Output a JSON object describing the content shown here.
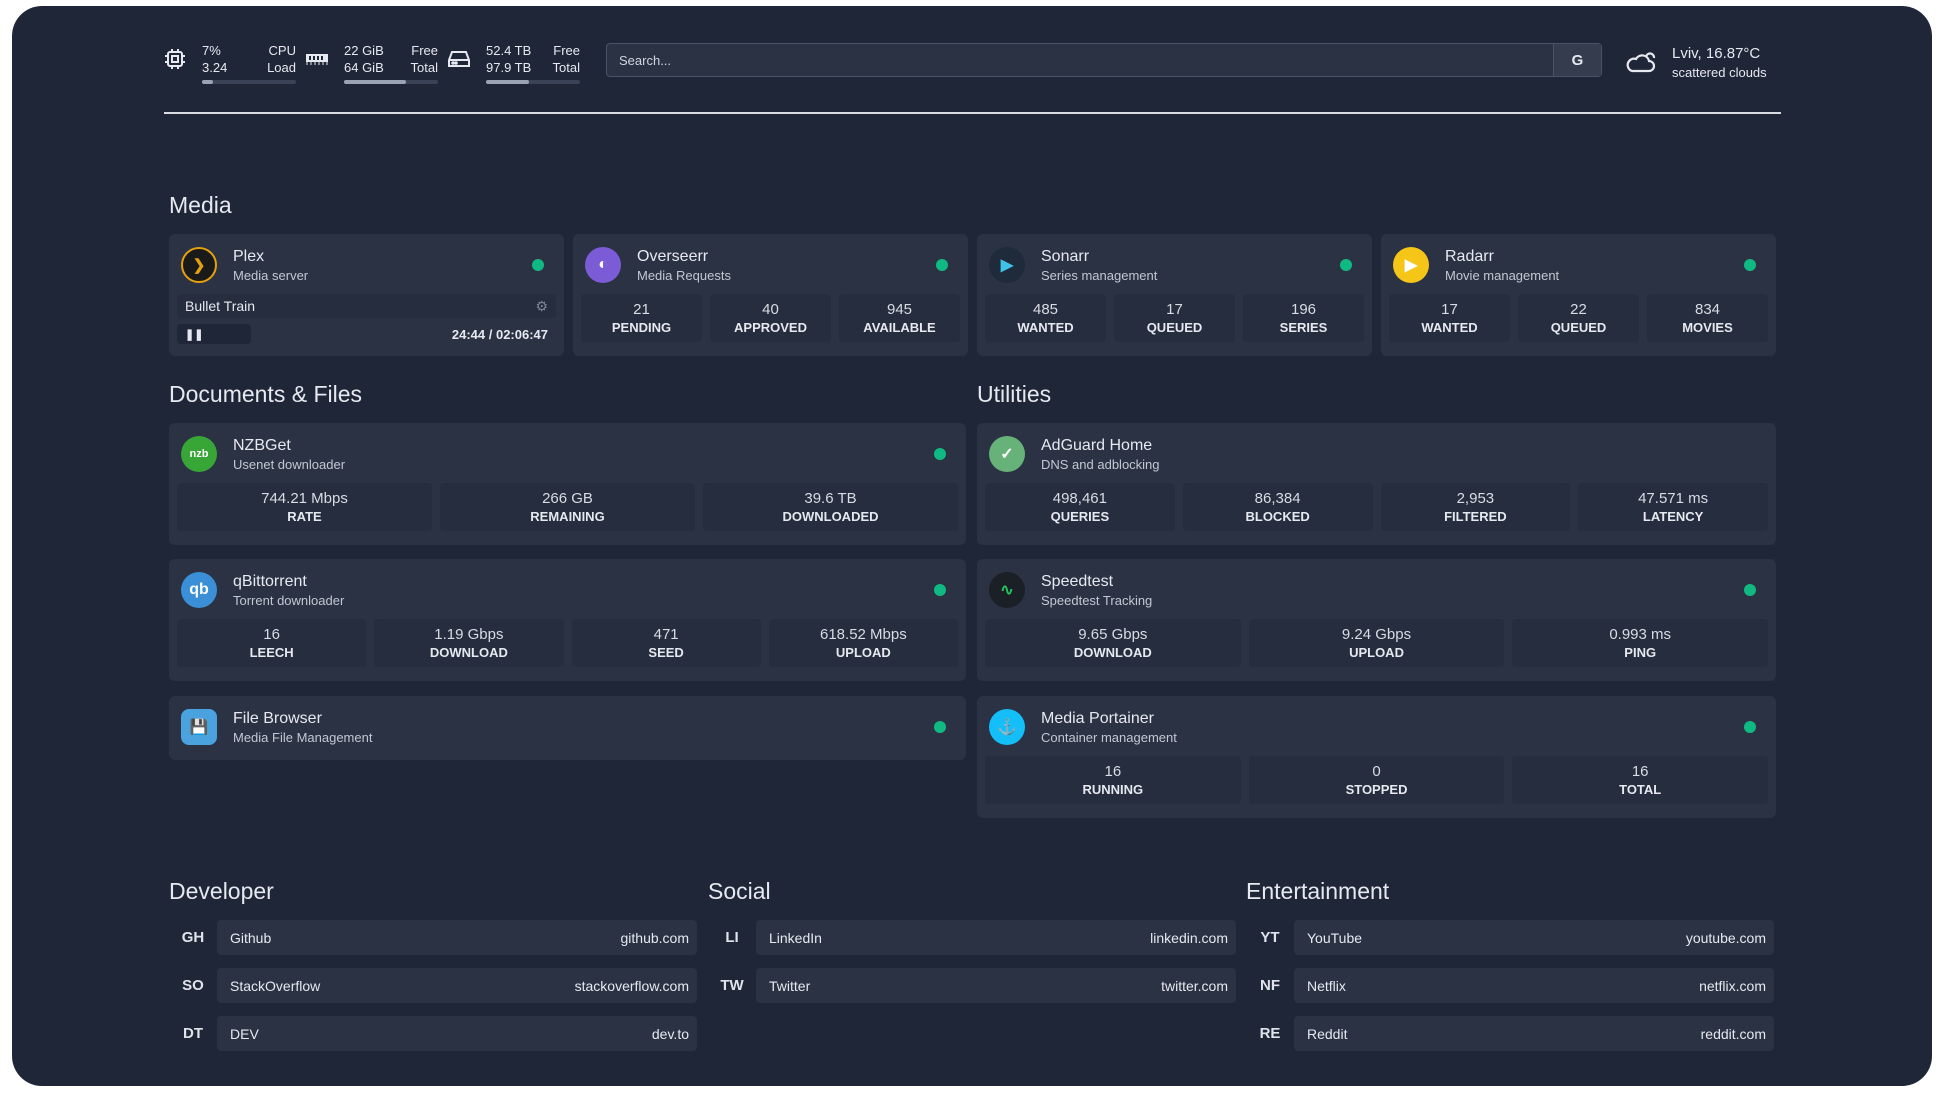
{
  "resources": {
    "cpu": {
      "icon": "cpu-icon",
      "value1": "7%",
      "value2": "3.24",
      "label1": "CPU",
      "label2": "Load",
      "usage": 0.07
    },
    "memory": {
      "icon": "memory-icon",
      "value1": "22 GiB",
      "value2": "64 GiB",
      "label1": "Free",
      "label2": "Total",
      "usage": 0.66
    },
    "disk": {
      "icon": "disk-icon",
      "value1": "52.4 TB",
      "value2": "97.9 TB",
      "label1": "Free",
      "label2": "Total",
      "usage": 0.46
    }
  },
  "search": {
    "placeholder": "Search...",
    "provider": "G"
  },
  "weather": {
    "icon": "cloud-icon",
    "location": "Lviv, 16.87°C",
    "condition": "scattered clouds"
  },
  "colors": {
    "status_online": "#10b981",
    "background": "#1f2638",
    "card": "#2a3244"
  },
  "sections": {
    "media": "Media",
    "documents": "Documents & Files",
    "utilities": "Utilities",
    "developer": "Developer",
    "social": "Social",
    "entertainment": "Entertainment"
  },
  "plex": {
    "name": "Plex",
    "desc": "Media server",
    "title": "Bullet Train",
    "time": "24:44 / 02:06:47"
  },
  "overseerr": {
    "name": "Overseerr",
    "desc": "Media Requests",
    "stats": [
      {
        "v": "21",
        "l": "PENDING"
      },
      {
        "v": "40",
        "l": "APPROVED"
      },
      {
        "v": "945",
        "l": "AVAILABLE"
      }
    ]
  },
  "sonarr": {
    "name": "Sonarr",
    "desc": "Series management",
    "stats": [
      {
        "v": "485",
        "l": "WANTED"
      },
      {
        "v": "17",
        "l": "QUEUED"
      },
      {
        "v": "196",
        "l": "SERIES"
      }
    ]
  },
  "radarr": {
    "name": "Radarr",
    "desc": "Movie management",
    "stats": [
      {
        "v": "17",
        "l": "WANTED"
      },
      {
        "v": "22",
        "l": "QUEUED"
      },
      {
        "v": "834",
        "l": "MOVIES"
      }
    ]
  },
  "nzbget": {
    "name": "NZBGet",
    "desc": "Usenet downloader",
    "logo": "nzbget",
    "stats": [
      {
        "v": "744.21 Mbps",
        "l": "RATE"
      },
      {
        "v": "266 GB",
        "l": "REMAINING"
      },
      {
        "v": "39.6 TB",
        "l": "DOWNLOADED"
      }
    ]
  },
  "qbittorrent": {
    "name": "qBittorrent",
    "desc": "Torrent downloader",
    "logo": "qb",
    "stats": [
      {
        "v": "16",
        "l": "LEECH"
      },
      {
        "v": "1.19 Gbps",
        "l": "DOWNLOAD"
      },
      {
        "v": "471",
        "l": "SEED"
      },
      {
        "v": "618.52 Mbps",
        "l": "UPLOAD"
      }
    ]
  },
  "filebrowser": {
    "name": "File Browser",
    "desc": "Media File Management"
  },
  "adguard": {
    "name": "AdGuard Home",
    "desc": "DNS and adblocking",
    "stats": [
      {
        "v": "498,461",
        "l": "QUERIES"
      },
      {
        "v": "86,384",
        "l": "BLOCKED"
      },
      {
        "v": "2,953",
        "l": "FILTERED"
      },
      {
        "v": "47.571 ms",
        "l": "LATENCY"
      }
    ]
  },
  "speedtest": {
    "name": "Speedtest",
    "desc": "Speedtest Tracking",
    "stats": [
      {
        "v": "9.65 Gbps",
        "l": "DOWNLOAD"
      },
      {
        "v": "9.24 Gbps",
        "l": "UPLOAD"
      },
      {
        "v": "0.993 ms",
        "l": "PING"
      }
    ]
  },
  "portainer": {
    "name": "Media Portainer",
    "desc": "Container management",
    "stats": [
      {
        "v": "16",
        "l": "RUNNING"
      },
      {
        "v": "0",
        "l": "STOPPED"
      },
      {
        "v": "16",
        "l": "TOTAL"
      }
    ]
  },
  "bookmarks": {
    "developer": [
      {
        "abbr": "GH",
        "name": "Github",
        "url": "github.com"
      },
      {
        "abbr": "SO",
        "name": "StackOverflow",
        "url": "stackoverflow.com"
      },
      {
        "abbr": "DT",
        "name": "DEV",
        "url": "dev.to"
      }
    ],
    "social": [
      {
        "abbr": "LI",
        "name": "LinkedIn",
        "url": "linkedin.com"
      },
      {
        "abbr": "TW",
        "name": "Twitter",
        "url": "twitter.com"
      }
    ],
    "entertainment": [
      {
        "abbr": "YT",
        "name": "YouTube",
        "url": "youtube.com"
      },
      {
        "abbr": "NF",
        "name": "Netflix",
        "url": "netflix.com"
      },
      {
        "abbr": "RE",
        "name": "Reddit",
        "url": "reddit.com"
      }
    ]
  }
}
